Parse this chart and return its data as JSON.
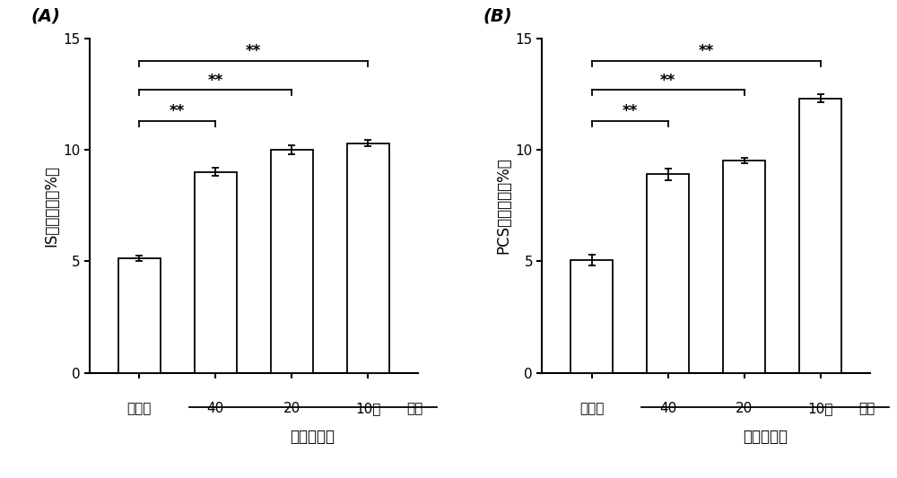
{
  "panel_A": {
    "label": "(A)",
    "ylabel": "IS透析效率（%）",
    "categories": [
      "空白组",
      "40",
      "20",
      "10倍"
    ],
    "values": [
      5.15,
      9.0,
      10.0,
      10.3
    ],
    "errors": [
      0.12,
      0.18,
      0.22,
      0.15
    ],
    "ylim": [
      0,
      15
    ],
    "yticks": [
      0,
      5,
      10,
      15
    ],
    "xlabel_main": "丹红注射液",
    "xlabel_extra": "稀释",
    "significance": [
      {
        "bar1": 0,
        "bar2": 1,
        "y": 11.3,
        "label": "**"
      },
      {
        "bar1": 0,
        "bar2": 2,
        "y": 12.7,
        "label": "**"
      },
      {
        "bar1": 0,
        "bar2": 3,
        "y": 14.0,
        "label": "**"
      }
    ]
  },
  "panel_B": {
    "label": "(B)",
    "ylabel": "PCS透析效率（%）",
    "categories": [
      "空白组",
      "40",
      "20",
      "10倍"
    ],
    "values": [
      5.05,
      8.9,
      9.5,
      12.3
    ],
    "errors": [
      0.25,
      0.25,
      0.12,
      0.18
    ],
    "ylim": [
      0,
      15
    ],
    "yticks": [
      0,
      5,
      10,
      15
    ],
    "xlabel_main": "丹红注射液",
    "xlabel_extra": "稀释",
    "significance": [
      {
        "bar1": 0,
        "bar2": 1,
        "y": 11.3,
        "label": "**"
      },
      {
        "bar1": 0,
        "bar2": 2,
        "y": 12.7,
        "label": "**"
      },
      {
        "bar1": 0,
        "bar2": 3,
        "y": 14.0,
        "label": "**"
      }
    ]
  },
  "bar_color": "#ffffff",
  "bar_edgecolor": "#000000",
  "bar_width": 0.55,
  "capsize": 3,
  "figure_bg": "#ffffff",
  "font_size_ylabel": 12,
  "font_size_tick": 11,
  "font_size_panel": 14,
  "font_size_sig": 12,
  "font_size_xlabel": 12
}
